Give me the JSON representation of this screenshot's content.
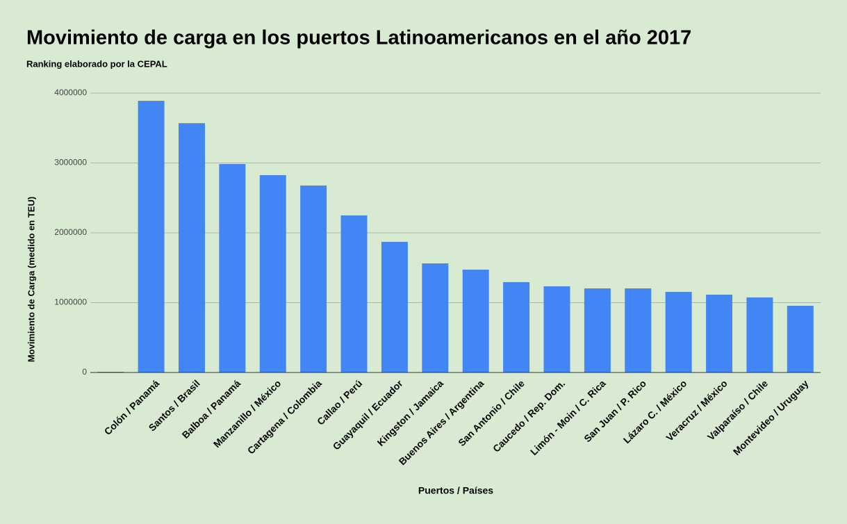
{
  "chart_data": {
    "type": "bar",
    "title": "Movimiento de carga en los puertos Latinoamericanos en el año 2017",
    "subtitle": "Ranking elaborado por la CEPAL",
    "x_label": "Puertos / Países",
    "y_label": "Movimiento de Carga (medido en TEU)",
    "categories": [
      null,
      "Colón / Panamá",
      "Santos / Brasil",
      "Balboa / Panamá",
      "Manzanillo / México",
      "Cartagena / Colombia",
      "Callao / Perú",
      "Guayaquil / Ecuador",
      "Kingston / Jamaica",
      "Buenos Aires / Argentina",
      "San Antonio / Chile",
      "Caucedo / Rep. Dom.",
      "Limón - Moin / C. Rica",
      "San Juan / P. Rico",
      "Lázaro C. / México",
      "Veracruz / México",
      "Valparaíso / Chile",
      "Montevideo / Uruguay"
    ],
    "values": [
      10000,
      3890000,
      3570000,
      2985000,
      2826000,
      2677000,
      2249000,
      1871000,
      1562000,
      1473000,
      1294000,
      1234000,
      1204000,
      1204000,
      1154000,
      1114000,
      1075000,
      955000
    ],
    "color": "#4285f4",
    "ylim": [
      0,
      4000000
    ],
    "yticks": [
      0,
      1000000,
      2000000,
      3000000,
      4000000
    ],
    "grid": true
  }
}
